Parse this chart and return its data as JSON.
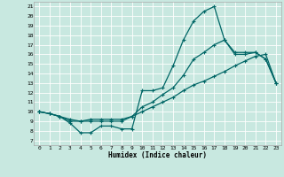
{
  "xlabel": "Humidex (Indice chaleur)",
  "bg_color": "#c8e8e0",
  "grid_color": "#ffffff",
  "line_color": "#006666",
  "xlim": [
    -0.5,
    23.5
  ],
  "ylim": [
    6.5,
    21.5
  ],
  "xticks": [
    0,
    1,
    2,
    3,
    4,
    5,
    6,
    7,
    8,
    9,
    10,
    11,
    12,
    13,
    14,
    15,
    16,
    17,
    18,
    19,
    20,
    21,
    22,
    23
  ],
  "yticks": [
    7,
    8,
    9,
    10,
    11,
    12,
    13,
    14,
    15,
    16,
    17,
    18,
    19,
    20,
    21
  ],
  "line1_x": [
    0,
    1,
    2,
    3,
    4,
    5,
    6,
    7,
    8,
    9,
    10,
    11,
    12,
    13,
    14,
    15,
    16,
    17,
    18,
    19,
    20,
    21,
    22,
    23
  ],
  "line1_y": [
    10,
    9.8,
    9.5,
    8.8,
    7.8,
    7.8,
    8.5,
    8.5,
    8.2,
    8.2,
    12.2,
    12.2,
    12.5,
    14.8,
    17.5,
    19.5,
    20.5,
    21,
    17.5,
    16.2,
    16.2,
    16.2,
    15.5,
    13
  ],
  "line2_x": [
    0,
    1,
    2,
    3,
    4,
    5,
    6,
    7,
    8,
    9,
    10,
    11,
    12,
    13,
    14,
    15,
    16,
    17,
    18,
    19,
    20,
    21,
    22,
    23
  ],
  "line2_y": [
    10,
    9.8,
    9.5,
    9.0,
    9.0,
    9.2,
    9.2,
    9.2,
    9.2,
    9.5,
    10.5,
    11.0,
    11.8,
    12.5,
    13.8,
    15.5,
    16.2,
    17.0,
    17.5,
    16.0,
    16.0,
    16.2,
    15.5,
    13
  ],
  "line3_x": [
    0,
    1,
    2,
    3,
    4,
    5,
    6,
    7,
    8,
    9,
    10,
    11,
    12,
    13,
    14,
    15,
    16,
    17,
    18,
    19,
    20,
    21,
    22,
    23
  ],
  "line3_y": [
    10,
    9.8,
    9.5,
    9.2,
    9.0,
    9.0,
    9.0,
    9.0,
    9.0,
    9.5,
    10.0,
    10.5,
    11.0,
    11.5,
    12.2,
    12.8,
    13.2,
    13.7,
    14.2,
    14.8,
    15.3,
    15.8,
    16.0,
    13
  ],
  "marker_size": 2.5,
  "line_width": 0.9,
  "xlabel_fontsize": 5.5,
  "tick_fontsize": 4.5
}
